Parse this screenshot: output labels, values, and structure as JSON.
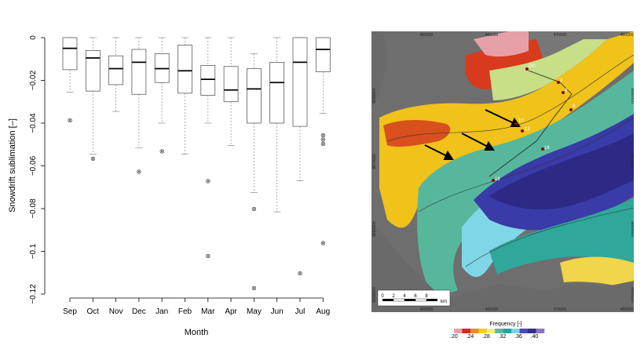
{
  "chart_data": [
    {
      "type": "box",
      "xlabel": "Month",
      "ylabel": "Snowdrift sublimation [–]",
      "ylim": [
        -0.12,
        0
      ],
      "yticks": [
        0,
        -0.02,
        -0.04,
        -0.06,
        -0.08,
        -0.1,
        -0.12
      ],
      "ytick_labels": [
        "0",
        "−0.02",
        "−0.04",
        "−0.06",
        "−0.08",
        "−0.1",
        "−0.12"
      ],
      "categories": [
        "Sep",
        "Oct",
        "Nov",
        "Dec",
        "Jan",
        "Feb",
        "Mar",
        "Apr",
        "May",
        "Jun",
        "Jul",
        "Aug"
      ],
      "boxes": [
        {
          "q1": -0.015,
          "median": -0.005,
          "q3": 0.0,
          "whisker_low": -0.0255,
          "whisker_high": 0.0,
          "outliers": [
            -0.0385
          ]
        },
        {
          "q1": -0.025,
          "median": -0.0095,
          "q3": -0.006,
          "whisker_low": -0.0545,
          "whisker_high": 0.0,
          "outliers": [
            -0.0565
          ]
        },
        {
          "q1": -0.022,
          "median": -0.0145,
          "q3": -0.0085,
          "whisker_low": -0.0345,
          "whisker_high": 0.0,
          "outliers": []
        },
        {
          "q1": -0.0265,
          "median": -0.0115,
          "q3": -0.0055,
          "whisker_low": -0.0515,
          "whisker_high": 0.0,
          "outliers": [
            -0.0625
          ]
        },
        {
          "q1": -0.021,
          "median": -0.0145,
          "q3": -0.0075,
          "whisker_low": -0.04,
          "whisker_high": 0.0,
          "outliers": [
            -0.053
          ]
        },
        {
          "q1": -0.026,
          "median": -0.0155,
          "q3": -0.0035,
          "whisker_low": -0.0545,
          "whisker_high": 0.0,
          "outliers": []
        },
        {
          "q1": -0.027,
          "median": -0.0195,
          "q3": -0.013,
          "whisker_low": -0.04,
          "whisker_high": 0.0,
          "outliers": [
            -0.067,
            -0.102
          ]
        },
        {
          "q1": -0.03,
          "median": -0.0245,
          "q3": -0.0135,
          "whisker_low": -0.0505,
          "whisker_high": 0.0,
          "outliers": []
        },
        {
          "q1": -0.04,
          "median": -0.024,
          "q3": -0.0145,
          "whisker_low": -0.0725,
          "whisker_high": -0.0075,
          "outliers": [
            -0.08,
            -0.117
          ]
        },
        {
          "q1": -0.04,
          "median": -0.021,
          "q3": -0.0115,
          "whisker_low": -0.0815,
          "whisker_high": 0.0,
          "outliers": []
        },
        {
          "q1": -0.0415,
          "median": -0.0115,
          "q3": 0.0,
          "whisker_low": -0.067,
          "whisker_high": 0.0,
          "outliers": [
            -0.11
          ]
        },
        {
          "q1": -0.016,
          "median": -0.0055,
          "q3": 0.0,
          "whisker_low": -0.0355,
          "whisker_high": 0.0,
          "outliers": [
            -0.0455,
            -0.0475,
            -0.0495,
            -0.096
          ]
        }
      ],
      "grid": false
    },
    {
      "type": "map",
      "x_tick_labels": [
        "450000",
        "460000",
        "470000",
        "480000"
      ],
      "y_tick_labels": [
        "8880000",
        "8870000",
        "8860000",
        "8850000"
      ],
      "point_labels": [
        "DG",
        "2",
        "4",
        "8",
        "10",
        "13",
        "16",
        "18"
      ],
      "scalebar": {
        "ticks": [
          "0",
          "2",
          "4",
          "6",
          "8"
        ],
        "unit": "km"
      },
      "legend": {
        "title": "Frequency [-]",
        "tick_labels": [
          ".20",
          ".24",
          ".28",
          ".32",
          ".36",
          ".40"
        ],
        "colors": [
          "#e8a0a8",
          "#d52a1c",
          "#ef8a22",
          "#f5d20b",
          "#eff17a",
          "#55bca3",
          "#1fa5a2",
          "#7ad4e7",
          "#4a4bb6",
          "#312e8f",
          "#8c76bd"
        ]
      }
    }
  ]
}
